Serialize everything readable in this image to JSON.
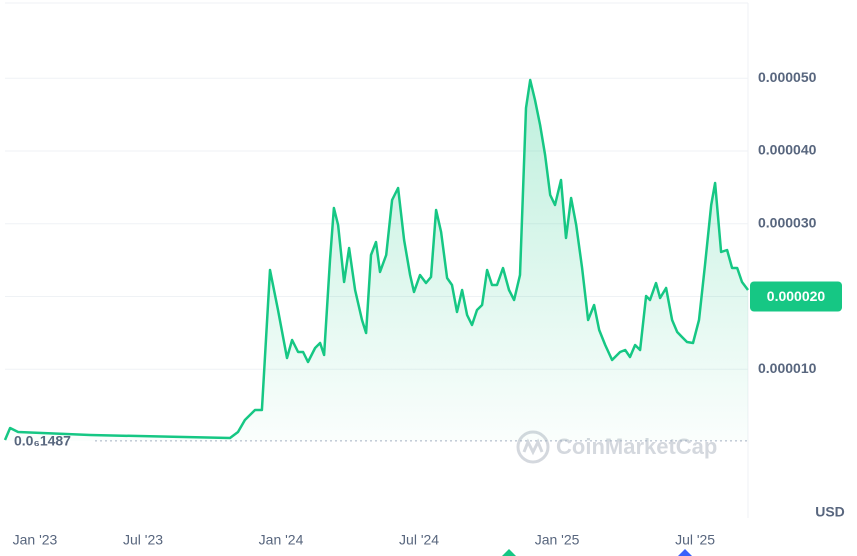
{
  "chart_data": {
    "type": "area",
    "x": [
      0,
      0.22,
      0.57,
      3.7,
      9.78,
      10.13,
      10.43,
      10.87,
      11.17,
      11.52,
      11.87,
      12.26,
      12.48,
      12.74,
      12.96,
      13.17,
      13.48,
      13.7,
      13.87,
      14.13,
      14.3,
      14.48,
      14.74,
      14.96,
      15.22,
      15.52,
      15.7,
      15.91,
      16.13,
      16.3,
      16.57,
      16.83,
      17.09,
      17.35,
      17.61,
      17.78,
      18.04,
      18.3,
      18.52,
      18.74,
      18.96,
      19.22,
      19.43,
      19.65,
      19.87,
      20.09,
      20.3,
      20.52,
      20.74,
      20.96,
      21.17,
      21.39,
      21.65,
      21.91,
      22.13,
      22.39,
      22.65,
      22.83,
      23.04,
      23.26,
      23.48,
      23.7,
      23.91,
      24.17,
      24.39,
      24.61,
      24.83,
      25.09,
      25.35,
      25.61,
      25.83,
      26.09,
      26.39,
      26.74,
      26.96,
      27.17,
      27.39,
      27.61,
      27.87,
      28.04,
      28.3,
      28.48,
      28.74,
      29.0,
      29.22,
      29.43,
      29.65,
      29.91,
      30.17,
      30.43,
      30.7,
      30.87,
      31.13,
      31.39,
      31.61,
      31.83,
      32.04,
      32.3
    ],
    "series": [
      {
        "color": "#16c784",
        "values": [
          2.7e-07,
          1.92e-06,
          1.37e-06,
          9.6e-07,
          5.5e-07,
          1.37e-06,
          3.02e-06,
          4.4e-06,
          4.4e-06,
          2.364e-05,
          1.814e-05,
          1.155e-05,
          1.402e-05,
          1.237e-05,
          1.237e-05,
          1.1e-05,
          1.292e-05,
          1.361e-05,
          1.196e-05,
          2.502e-05,
          3.216e-05,
          2.983e-05,
          2.199e-05,
          2.667e-05,
          2.089e-05,
          1.677e-05,
          1.498e-05,
          2.57e-05,
          2.749e-05,
          2.337e-05,
          2.57e-05,
          3.326e-05,
          3.491e-05,
          2.777e-05,
          2.296e-05,
          2.062e-05,
          2.296e-05,
          2.186e-05,
          2.268e-05,
          3.189e-05,
          2.887e-05,
          2.254e-05,
          2.158e-05,
          1.787e-05,
          2.089e-05,
          1.746e-05,
          1.608e-05,
          1.814e-05,
          1.883e-05,
          2.364e-05,
          2.158e-05,
          2.158e-05,
          2.392e-05,
          2.089e-05,
          1.952e-05,
          2.296e-05,
          4.591e-05,
          4.976e-05,
          4.701e-05,
          4.357e-05,
          3.945e-05,
          3.395e-05,
          3.258e-05,
          3.601e-05,
          2.804e-05,
          3.354e-05,
          2.983e-05,
          2.392e-05,
          1.677e-05,
          1.883e-05,
          1.54e-05,
          1.333e-05,
          1.127e-05,
          1.237e-05,
          1.265e-05,
          1.168e-05,
          1.333e-05,
          1.265e-05,
          2.007e-05,
          1.952e-05,
          2.186e-05,
          1.979e-05,
          2.117e-05,
          1.677e-05,
          1.512e-05,
          1.443e-05,
          1.375e-05,
          1.361e-05,
          1.677e-05,
          2.433e-05,
          3.258e-05,
          3.56e-05,
          2.612e-05,
          2.639e-05,
          2.392e-05,
          2.392e-05,
          2.199e-05,
          2.089e-05
        ]
      }
    ],
    "xlim": [
      0,
      32.3
    ],
    "xticks": [
      {
        "value": 0,
        "label": "Jan '23"
      },
      {
        "value": 6,
        "label": "Jul '23"
      },
      {
        "value": 12,
        "label": "Jan '24"
      },
      {
        "value": 18,
        "label": "Jul '24"
      },
      {
        "value": 24,
        "label": "Jan '25"
      },
      {
        "value": 30,
        "label": "Jul '25"
      }
    ],
    "ylim": [
      -1.045e-05,
      6.076e-05
    ],
    "yticks": [
      {
        "value": 1e-05,
        "label": "0.000010"
      },
      {
        "value": 2e-05,
        "label": "0.000020"
      },
      {
        "value": 3e-05,
        "label": "0.000030"
      },
      {
        "value": 4e-05,
        "label": "0.000040"
      },
      {
        "value": 5e-05,
        "label": "0.000050"
      }
    ],
    "grid": true,
    "price_tag": {
      "value": 2e-05,
      "label": "0.000020"
    },
    "baseline": {
      "value": 1.487e-07,
      "label": "0.0₆1487"
    },
    "currency": "USD",
    "watermark": "CoinMarketCap"
  }
}
